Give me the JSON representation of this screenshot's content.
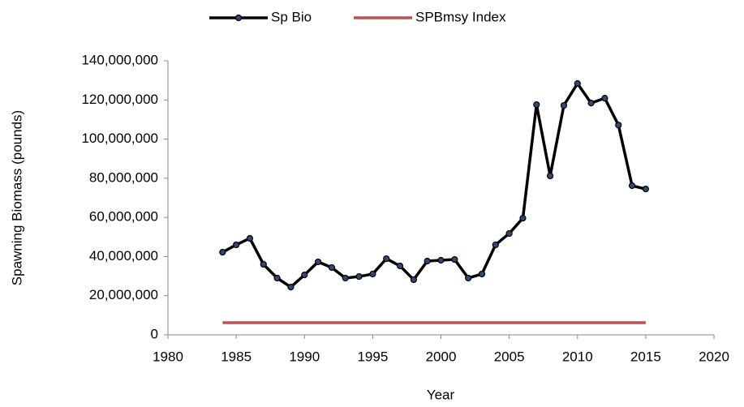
{
  "chart_data": {
    "type": "line",
    "x_label": "Year",
    "y_label": "Spawning Biomass (pounds)",
    "x": [
      1984,
      1985,
      1986,
      1987,
      1988,
      1989,
      1990,
      1991,
      1992,
      1993,
      1994,
      1995,
      1996,
      1997,
      1998,
      1999,
      2000,
      2001,
      2002,
      2003,
      2004,
      2005,
      2006,
      2007,
      2008,
      2009,
      2010,
      2011,
      2012,
      2013,
      2014,
      2015
    ],
    "series": [
      {
        "name": "Sp Bio",
        "color": "#000000",
        "marker_color": "#2e4a78",
        "markers": true,
        "values": [
          42200000,
          46000000,
          49300000,
          36000000,
          29000000,
          24400000,
          30600000,
          37300000,
          34400000,
          29000000,
          29800000,
          31100000,
          38900000,
          35200000,
          28200000,
          37700000,
          38100000,
          38500000,
          29000000,
          31100000,
          46000000,
          51800000,
          59600000,
          117600000,
          81200000,
          117200000,
          128400000,
          118400000,
          120900000,
          107200000,
          76200000,
          74500000
        ]
      },
      {
        "name": "SPBmsy Index",
        "color": "#c0504d",
        "markers": false,
        "values": [
          6200000,
          6200000,
          6200000,
          6200000,
          6200000,
          6200000,
          6200000,
          6200000,
          6200000,
          6200000,
          6200000,
          6200000,
          6200000,
          6200000,
          6200000,
          6200000,
          6200000,
          6200000,
          6200000,
          6200000,
          6200000,
          6200000,
          6200000,
          6200000,
          6200000,
          6200000,
          6200000,
          6200000,
          6200000,
          6200000,
          6200000,
          6200000
        ]
      }
    ],
    "xlim": [
      1980,
      2020
    ],
    "xticks": [
      1980,
      1985,
      1990,
      1995,
      2000,
      2005,
      2010,
      2015,
      2020
    ],
    "ylim": [
      0,
      140000000
    ],
    "yticks": [
      0,
      {
        "value": 20000000,
        "label": "20,000,000"
      },
      {
        "value": 40000000,
        "label": "40,000,000"
      },
      {
        "value": 60000000,
        "label": "60,000,000"
      },
      {
        "value": 80000000,
        "label": "80,000,000"
      },
      {
        "value": 100000000,
        "label": "100,000,000"
      },
      {
        "value": 120000000,
        "label": "120,000,000"
      },
      {
        "value": 140000000,
        "label": "140,000,000"
      }
    ],
    "grid": false,
    "legend": "top"
  }
}
